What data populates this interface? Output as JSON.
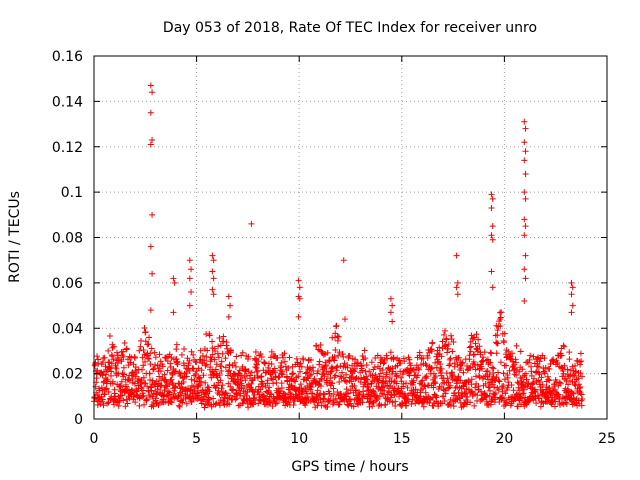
{
  "chart_data": {
    "type": "scatter",
    "title": "Day 053 of 2018, Rate Of TEC Index for receiver unro",
    "xlabel": "GPS time / hours",
    "ylabel": "ROTI / TECUs",
    "xlim": [
      0,
      25
    ],
    "ylim": [
      0,
      0.16
    ],
    "xticks": [
      0,
      5,
      10,
      15,
      20,
      25
    ],
    "xtick_labels": [
      "0",
      "5",
      "10",
      "15",
      "20",
      "25"
    ],
    "yticks": [
      0,
      0.02,
      0.04,
      0.06,
      0.08,
      0.1,
      0.12,
      0.14,
      0.16
    ],
    "ytick_labels": [
      "0",
      "0.02",
      "0.04",
      "0.06",
      "0.08",
      "0.1",
      "0.12",
      "0.14",
      "0.16"
    ],
    "grid": true,
    "marker": "+",
    "color": "#ff0000",
    "x_data_range": [
      0,
      23.8
    ],
    "baseline_range": [
      0.005,
      0.035
    ],
    "spikes": [
      {
        "x": 2.8,
        "y_values": [
          0.147,
          0.144,
          0.135,
          0.123,
          0.121,
          0.09,
          0.076,
          0.064,
          0.048
        ]
      },
      {
        "x": 3.9,
        "y_values": [
          0.062,
          0.06,
          0.047
        ]
      },
      {
        "x": 4.7,
        "y_values": [
          0.07,
          0.066,
          0.062,
          0.056,
          0.05
        ]
      },
      {
        "x": 5.8,
        "y_values": [
          0.072,
          0.07,
          0.065,
          0.062,
          0.057,
          0.055
        ]
      },
      {
        "x": 6.6,
        "y_values": [
          0.054,
          0.05,
          0.045
        ]
      },
      {
        "x": 7.7,
        "y_values": [
          0.086
        ]
      },
      {
        "x": 10.0,
        "y_values": [
          0.061,
          0.058,
          0.054,
          0.053,
          0.045
        ]
      },
      {
        "x": 12.2,
        "y_values": [
          0.07,
          0.044
        ]
      },
      {
        "x": 14.5,
        "y_values": [
          0.053,
          0.05,
          0.047,
          0.043
        ]
      },
      {
        "x": 17.7,
        "y_values": [
          0.072,
          0.06,
          0.058,
          0.055
        ]
      },
      {
        "x": 19.4,
        "y_values": [
          0.099,
          0.097,
          0.093,
          0.085,
          0.081,
          0.079,
          0.065,
          0.058
        ]
      },
      {
        "x": 21.0,
        "y_values": [
          0.131,
          0.128,
          0.122,
          0.118,
          0.114,
          0.108,
          0.1,
          0.097,
          0.088,
          0.085,
          0.081,
          0.072,
          0.066,
          0.062,
          0.052
        ]
      },
      {
        "x": 23.3,
        "y_values": [
          0.06,
          0.058,
          0.055,
          0.05,
          0.047
        ]
      }
    ],
    "bursts": [
      {
        "x": 0.8,
        "peak": 0.036
      },
      {
        "x": 1.5,
        "peak": 0.036
      },
      {
        "x": 2.5,
        "peak": 0.04
      },
      {
        "x": 4.2,
        "peak": 0.038
      },
      {
        "x": 5.5,
        "peak": 0.04
      },
      {
        "x": 6.3,
        "peak": 0.042
      },
      {
        "x": 8.2,
        "peak": 0.03
      },
      {
        "x": 9.6,
        "peak": 0.03
      },
      {
        "x": 11.0,
        "peak": 0.036
      },
      {
        "x": 11.8,
        "peak": 0.04
      },
      {
        "x": 13.2,
        "peak": 0.03
      },
      {
        "x": 16.4,
        "peak": 0.034
      },
      {
        "x": 17.2,
        "peak": 0.044
      },
      {
        "x": 18.6,
        "peak": 0.04
      },
      {
        "x": 19.8,
        "peak": 0.046
      },
      {
        "x": 20.6,
        "peak": 0.03
      },
      {
        "x": 22.8,
        "peak": 0.034
      }
    ]
  }
}
